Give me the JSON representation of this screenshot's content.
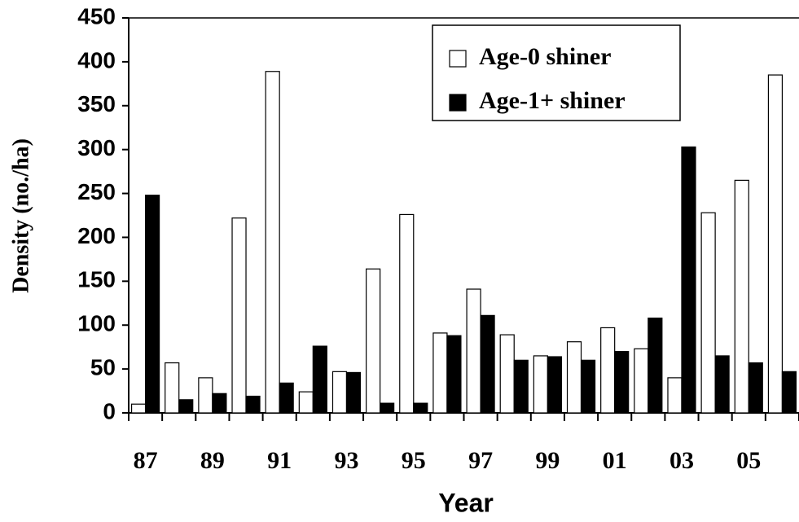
{
  "chart_data": {
    "type": "bar",
    "x_label": "Year",
    "y_label": "Density (no./ha)",
    "categories": [
      "87",
      null,
      "89",
      null,
      "91",
      null,
      "93",
      null,
      "95",
      null,
      "97",
      null,
      "99",
      null,
      "01",
      null,
      "03",
      null,
      "05",
      null
    ],
    "series": [
      {
        "name": "Age-0 shiner",
        "color": "#ffffff",
        "values": [
          10,
          57,
          40,
          222,
          389,
          24,
          47,
          164,
          226,
          91,
          141,
          89,
          65,
          81,
          97,
          73,
          40,
          228,
          265,
          385
        ]
      },
      {
        "name": "Age-1+ shiner",
        "color": "#000000",
        "values": [
          248,
          15,
          22,
          19,
          34,
          76,
          46,
          11,
          11,
          88,
          111,
          60,
          64,
          60,
          70,
          108,
          303,
          65,
          57,
          47
        ]
      }
    ],
    "ylim": [
      0,
      450
    ],
    "yticks": [
      0,
      50,
      100,
      150,
      200,
      250,
      300,
      350,
      400,
      450
    ],
    "legend": "upper right"
  }
}
